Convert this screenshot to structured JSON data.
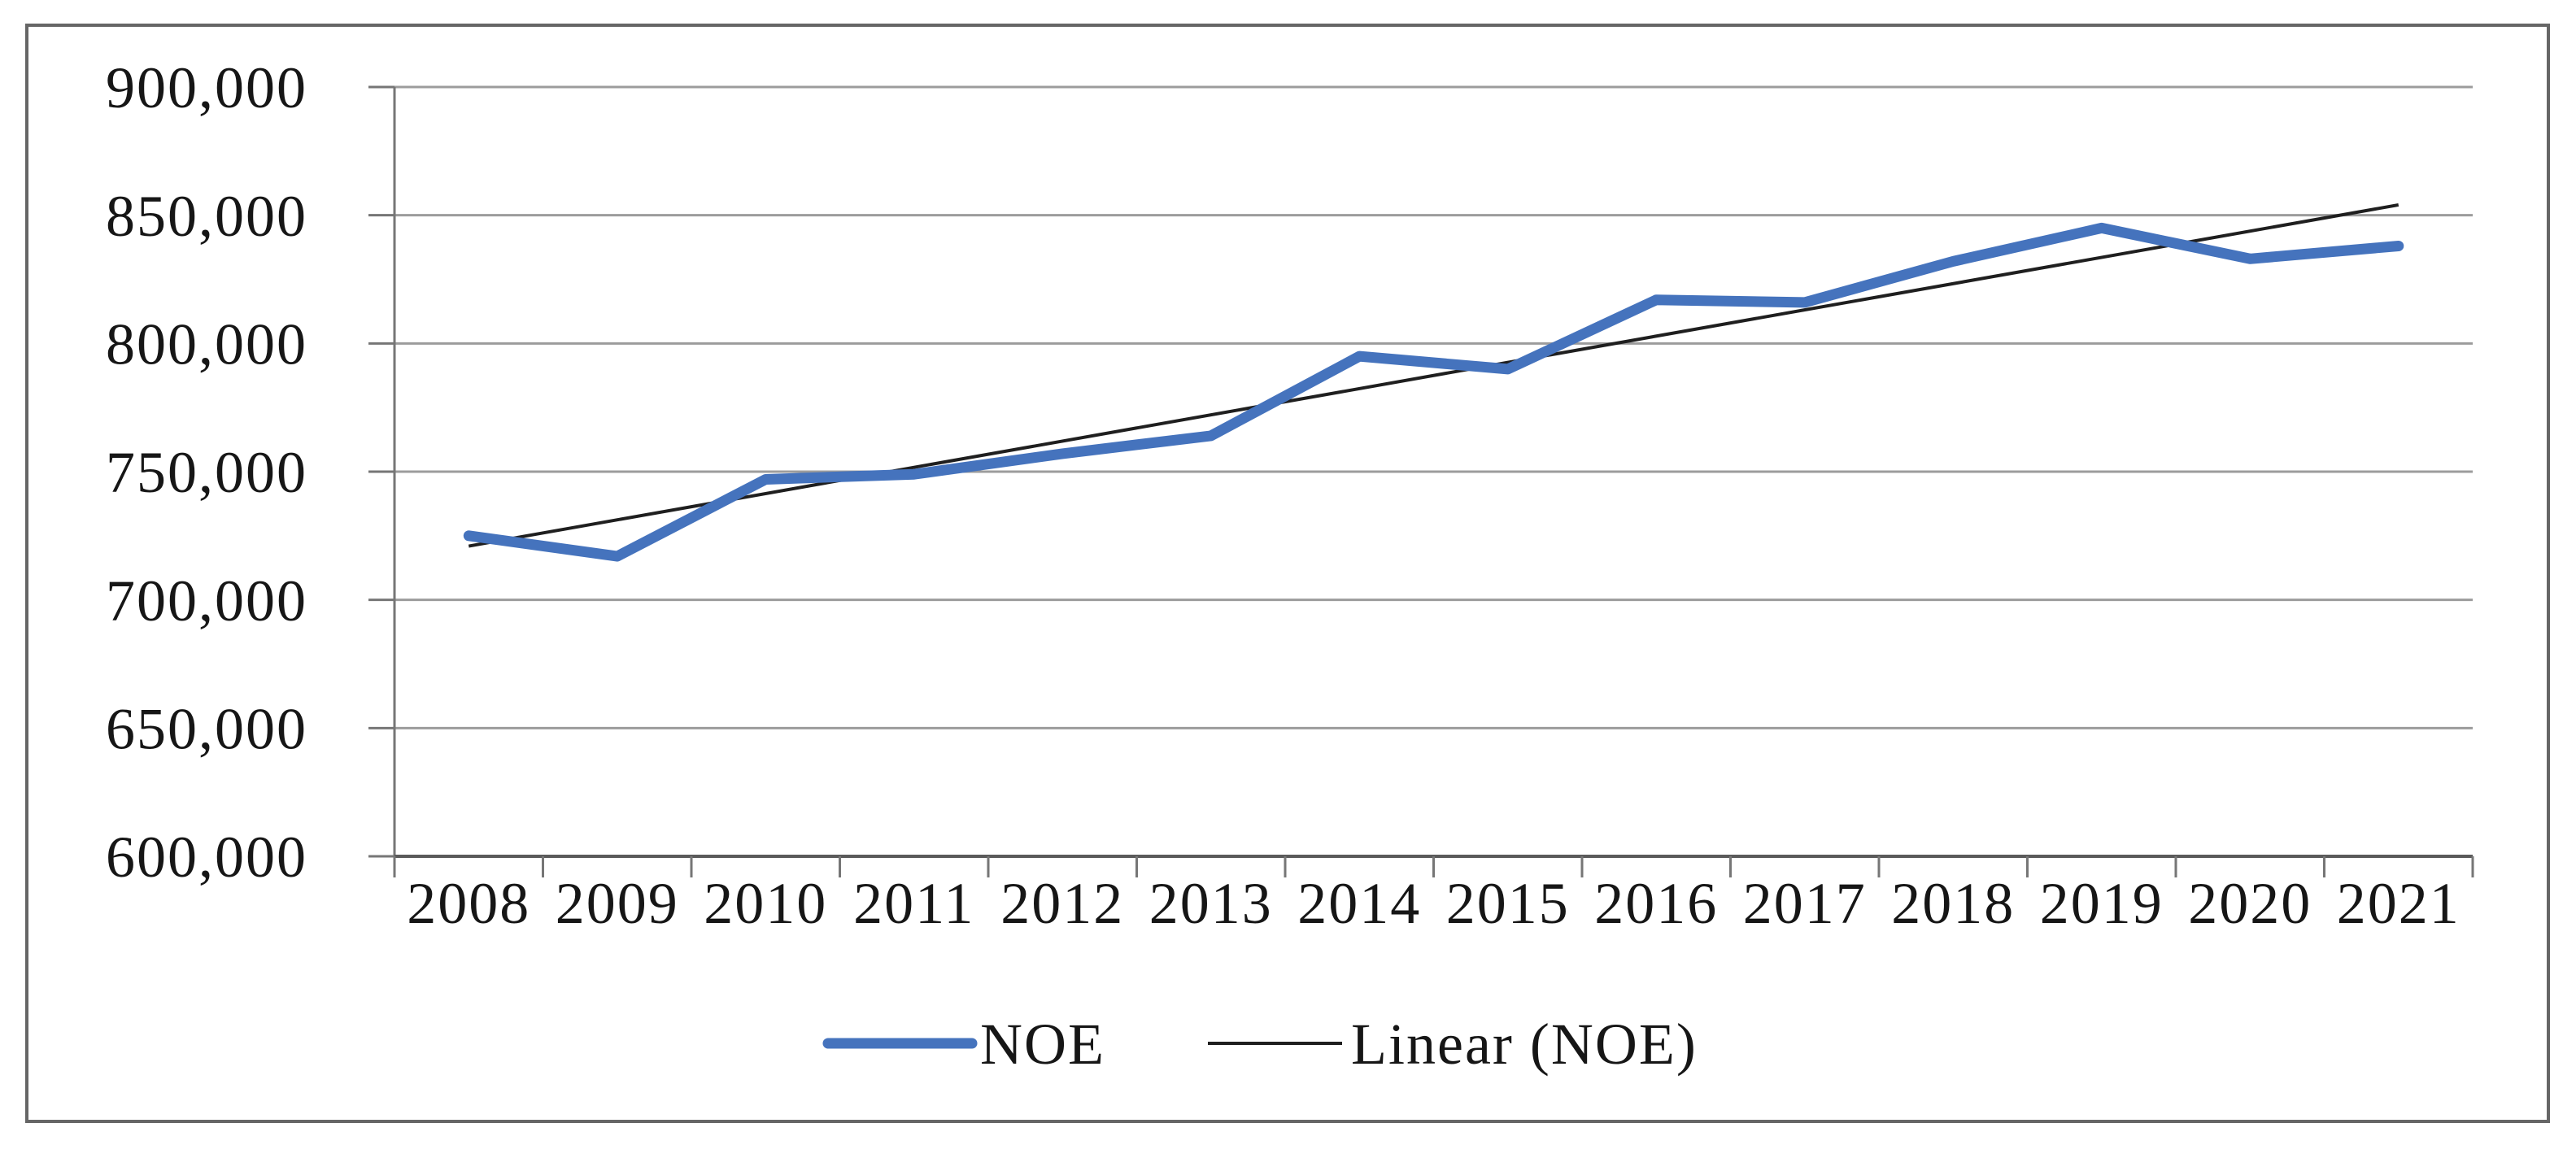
{
  "chart_data": {
    "type": "line",
    "title": "",
    "categories": [
      "2008",
      "2009",
      "2010",
      "2011",
      "2012",
      "2013",
      "2014",
      "2015",
      "2016",
      "2017",
      "2018",
      "2019",
      "2020",
      "2021"
    ],
    "series": [
      {
        "name": "NOE",
        "color": "#4573bd",
        "values": [
          725000,
          717000,
          747000,
          749000,
          757000,
          764000,
          795000,
          790000,
          817000,
          816000,
          832000,
          845000,
          833000,
          838000
        ]
      }
    ],
    "trendline": {
      "name": "Linear (NOE)",
      "color": "#1f1f1f",
      "fit": "least-squares"
    },
    "x_axis": {
      "tick_labels": [
        "2008",
        "2009",
        "2010",
        "2011",
        "2012",
        "2013",
        "2014",
        "2015",
        "2016",
        "2017",
        "2018",
        "2019",
        "2020",
        "2021"
      ]
    },
    "y_axis": {
      "min": 600000,
      "max": 900000,
      "step": 50000,
      "tick_labels_top_to_bottom": [
        "900,000",
        "850,000",
        "800,000",
        "750,000",
        "700,000",
        "650,000",
        "600,000"
      ]
    },
    "legend": {
      "position": "bottom",
      "entries": [
        "NOE",
        "Linear (NOE)"
      ]
    },
    "grid": true,
    "colors": {
      "gridline": "#9c9c9c",
      "axis": "#767676",
      "x_axis_line": "#5a5a5a",
      "frame_border": "#666666",
      "text": "#161616"
    }
  }
}
